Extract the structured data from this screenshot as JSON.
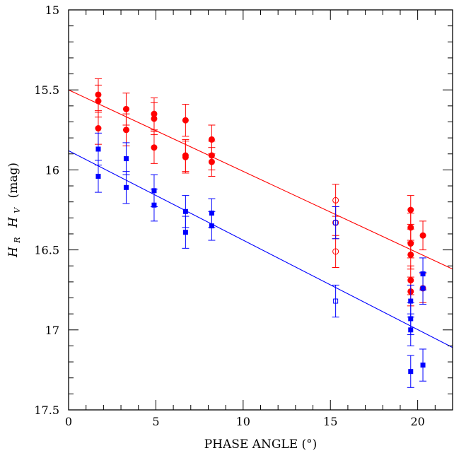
{
  "chart_data": {
    "type": "scatter",
    "xlabel": "PHASE ANGLE (°)",
    "ylabel_parts": [
      "H",
      "R",
      "H",
      "V",
      "(mag)"
    ],
    "xlim": [
      0,
      22
    ],
    "ylim": [
      15,
      17.5
    ],
    "y_inverted": true,
    "x_ticks": [
      0,
      5,
      10,
      15,
      20
    ],
    "x_tick_labels": [
      "0",
      "5",
      "10",
      "15",
      "20"
    ],
    "y_ticks": [
      15,
      15.5,
      16,
      16.5,
      17,
      17.5
    ],
    "y_tick_labels": [
      "15",
      "15.5",
      "16",
      "16.5",
      "17",
      "17.5"
    ],
    "grid": false,
    "colors": {
      "red": "#ff0000",
      "blue": "#0000ff"
    },
    "series": [
      {
        "color": "#ff0000",
        "marker": "filled-circle",
        "points": [
          {
            "x": 1.7,
            "y": 15.53,
            "err": 0.1
          },
          {
            "x": 1.7,
            "y": 15.57,
            "err": 0.1
          },
          {
            "x": 1.7,
            "y": 15.74,
            "err": 0.1
          },
          {
            "x": 3.3,
            "y": 15.62,
            "err": 0.1
          },
          {
            "x": 3.3,
            "y": 15.75,
            "err": 0.1
          },
          {
            "x": 4.9,
            "y": 15.65,
            "err": 0.1
          },
          {
            "x": 4.9,
            "y": 15.68,
            "err": 0.1
          },
          {
            "x": 4.9,
            "y": 15.86,
            "err": 0.1
          },
          {
            "x": 6.7,
            "y": 15.69,
            "err": 0.1
          },
          {
            "x": 6.7,
            "y": 15.91,
            "err": 0.1
          },
          {
            "x": 6.7,
            "y": 15.92,
            "err": 0.1
          },
          {
            "x": 8.2,
            "y": 15.81,
            "err": 0.09
          },
          {
            "x": 8.2,
            "y": 15.91,
            "err": 0.09
          },
          {
            "x": 8.2,
            "y": 15.95,
            "err": 0.09
          },
          {
            "x": 19.6,
            "y": 16.25,
            "err": 0.09
          },
          {
            "x": 19.6,
            "y": 16.36,
            "err": 0.09
          },
          {
            "x": 19.6,
            "y": 16.46,
            "err": 0.09
          },
          {
            "x": 19.6,
            "y": 16.53,
            "err": 0.09
          },
          {
            "x": 19.6,
            "y": 16.69,
            "err": 0.09
          },
          {
            "x": 19.6,
            "y": 16.76,
            "err": 0.09
          },
          {
            "x": 20.3,
            "y": 16.41,
            "err": 0.09
          },
          {
            "x": 20.3,
            "y": 16.74,
            "err": 0.09
          }
        ]
      },
      {
        "color": "#ff0000",
        "marker": "open-circle",
        "points": [
          {
            "x": 15.3,
            "y": 16.19,
            "err": 0.1
          },
          {
            "x": 15.3,
            "y": 16.33,
            "err": 0.1
          },
          {
            "x": 15.3,
            "y": 16.51,
            "err": 0.1
          }
        ]
      },
      {
        "color": "#0000ff",
        "marker": "filled-square",
        "points": [
          {
            "x": 1.7,
            "y": 15.87,
            "err": 0.1
          },
          {
            "x": 1.7,
            "y": 16.04,
            "err": 0.1
          },
          {
            "x": 3.3,
            "y": 15.93,
            "err": 0.1
          },
          {
            "x": 3.3,
            "y": 16.11,
            "err": 0.1
          },
          {
            "x": 4.9,
            "y": 16.13,
            "err": 0.1
          },
          {
            "x": 4.9,
            "y": 16.22,
            "err": 0.1
          },
          {
            "x": 6.7,
            "y": 16.26,
            "err": 0.1
          },
          {
            "x": 6.7,
            "y": 16.39,
            "err": 0.1
          },
          {
            "x": 8.2,
            "y": 16.27,
            "err": 0.09
          },
          {
            "x": 8.2,
            "y": 16.35,
            "err": 0.09
          },
          {
            "x": 19.6,
            "y": 16.82,
            "err": 0.1
          },
          {
            "x": 19.6,
            "y": 16.93,
            "err": 0.1
          },
          {
            "x": 19.6,
            "y": 17.0,
            "err": 0.1
          },
          {
            "x": 19.6,
            "y": 17.26,
            "err": 0.1
          },
          {
            "x": 20.3,
            "y": 16.65,
            "err": 0.1
          },
          {
            "x": 20.3,
            "y": 16.74,
            "err": 0.1
          },
          {
            "x": 20.3,
            "y": 17.22,
            "err": 0.1
          }
        ]
      },
      {
        "color": "#0000ff",
        "marker": "open-square",
        "points": [
          {
            "x": 15.3,
            "y": 16.33,
            "err": 0.1
          },
          {
            "x": 15.3,
            "y": 16.82,
            "err": 0.1
          }
        ]
      }
    ],
    "fit_lines": [
      {
        "color": "#ff0000",
        "x": [
          0,
          22
        ],
        "y": [
          15.5,
          16.62
        ]
      },
      {
        "color": "#0000ff",
        "x": [
          0,
          22
        ],
        "y": [
          15.88,
          17.11
        ]
      }
    ]
  }
}
